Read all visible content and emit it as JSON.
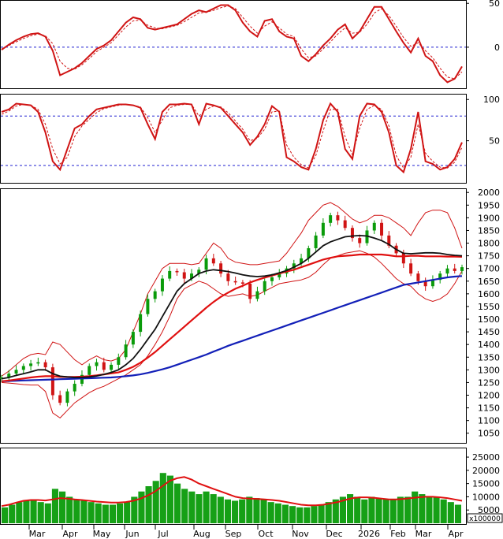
{
  "colors": {
    "price_up": "#0a9b0a",
    "price_down": "#d01414",
    "ma_short": "#111111",
    "ma_mid": "#e01010",
    "ma_long": "#1320b8",
    "band": "#d01414",
    "volume": "#16a016",
    "volume_ma": "#e01010",
    "ref_line": "#1f1fd0"
  },
  "x_axis": {
    "labels": [
      "Mar",
      "Apr",
      "May",
      "Jun",
      "Jul",
      "Aug",
      "Sep",
      "Oct",
      "Nov",
      "Dec",
      "2026",
      "Feb",
      "Mar",
      "Apr"
    ]
  },
  "chart_data": [
    {
      "type": "line",
      "panel": "oscillator-top",
      "y_ticks": [
        "50",
        "0"
      ],
      "ylim": [
        -45,
        52
      ],
      "reference_lines": [
        0
      ],
      "series": [
        {
          "values": [
            -3,
            3,
            8,
            12,
            15,
            16,
            12,
            -4,
            -32,
            -28,
            -24,
            -18,
            -10,
            -2,
            2,
            8,
            18,
            28,
            34,
            32,
            22,
            20,
            22,
            24,
            26,
            32,
            38,
            42,
            40,
            44,
            48,
            48,
            42,
            28,
            18,
            12,
            30,
            32,
            18,
            12,
            10,
            -10,
            -16,
            -8,
            2,
            10,
            20,
            26,
            10,
            18,
            32,
            46,
            46,
            32,
            18,
            5,
            -6,
            10,
            -10,
            -16,
            -32,
            -40,
            -36,
            -22
          ]
        },
        {
          "values": [
            -2,
            2,
            6,
            10,
            13,
            15,
            13,
            4,
            -16,
            -24,
            -25,
            -20,
            -13,
            -5,
            0,
            5,
            14,
            23,
            30,
            31,
            25,
            22,
            21,
            23,
            25,
            29,
            34,
            39,
            40,
            42,
            45,
            47,
            44,
            34,
            24,
            16,
            24,
            29,
            22,
            15,
            12,
            -2,
            -12,
            -10,
            -2,
            6,
            15,
            22,
            16,
            17,
            26,
            39,
            44,
            36,
            24,
            11,
            1,
            5,
            -4,
            -12,
            -24,
            -34,
            -36,
            -28
          ]
        }
      ]
    },
    {
      "type": "line",
      "panel": "oscillator-middle",
      "y_ticks": [
        "100",
        "50"
      ],
      "ylim": [
        0,
        105
      ],
      "reference_lines": [
        80,
        20
      ],
      "series": [
        {
          "values": [
            85,
            88,
            95,
            94,
            93,
            85,
            60,
            25,
            15,
            40,
            65,
            70,
            80,
            88,
            90,
            92,
            94,
            94,
            93,
            90,
            70,
            52,
            85,
            94,
            94,
            95,
            94,
            70,
            95,
            93,
            90,
            80,
            70,
            60,
            45,
            55,
            70,
            92,
            85,
            30,
            25,
            18,
            15,
            40,
            75,
            95,
            85,
            40,
            28,
            80,
            95,
            94,
            85,
            60,
            20,
            12,
            40,
            85,
            25,
            22,
            15,
            18,
            28,
            48
          ]
        },
        {
          "values": [
            82,
            86,
            92,
            94,
            93,
            88,
            70,
            40,
            22,
            30,
            55,
            68,
            76,
            84,
            89,
            91,
            93,
            94,
            93,
            91,
            78,
            60,
            75,
            90,
            93,
            94,
            94,
            80,
            88,
            92,
            91,
            84,
            74,
            64,
            50,
            53,
            64,
            85,
            86,
            45,
            30,
            21,
            17,
            32,
            62,
            88,
            88,
            55,
            33,
            65,
            88,
            93,
            88,
            68,
            32,
            17,
            30,
            70,
            35,
            25,
            18,
            17,
            24,
            42
          ]
        }
      ]
    },
    {
      "type": "line",
      "panel": "price",
      "y_ticks": [
        "2000",
        "1950",
        "1900",
        "1850",
        "1800",
        "1750",
        "1700",
        "1650",
        "1600",
        "1550",
        "1500",
        "1450",
        "1400",
        "1350",
        "1300",
        "1250",
        "1200",
        "1150",
        "1100",
        "1050"
      ],
      "ylim": [
        1015,
        2010
      ],
      "series": [
        {
          "values": [
            1270,
            1285,
            1300,
            1315,
            1325,
            1330,
            1310,
            1200,
            1170,
            1215,
            1245,
            1280,
            1315,
            1330,
            1300,
            1320,
            1350,
            1400,
            1450,
            1520,
            1580,
            1610,
            1660,
            1690,
            1685,
            1660,
            1680,
            1695,
            1740,
            1720,
            1680,
            1650,
            1645,
            1640,
            1580,
            1610,
            1650,
            1665,
            1680,
            1700,
            1720,
            1740,
            1780,
            1830,
            1880,
            1910,
            1890,
            1860,
            1820,
            1800,
            1850,
            1880,
            1830,
            1790,
            1760,
            1720,
            1680,
            1650,
            1630,
            1655,
            1680,
            1700,
            1690,
            1705
          ]
        },
        {
          "values": [
            1265,
            1270,
            1278,
            1285,
            1292,
            1300,
            1300,
            1285,
            1275,
            1272,
            1270,
            1270,
            1272,
            1276,
            1282,
            1290,
            1300,
            1320,
            1345,
            1380,
            1420,
            1460,
            1510,
            1560,
            1610,
            1640,
            1660,
            1680,
            1690,
            1695,
            1692,
            1688,
            1682,
            1675,
            1670,
            1668,
            1670,
            1675,
            1683,
            1692,
            1705,
            1720,
            1740,
            1765,
            1790,
            1805,
            1815,
            1825,
            1828,
            1830,
            1828,
            1820,
            1810,
            1795,
            1775,
            1760,
            1758,
            1760,
            1762,
            1762,
            1760,
            1755,
            1752,
            1750
          ]
        },
        {
          "values": [
            1255,
            1258,
            1262,
            1266,
            1270,
            1273,
            1275,
            1275,
            1272,
            1272,
            1272,
            1273,
            1275,
            1278,
            1282,
            1286,
            1290,
            1300,
            1312,
            1328,
            1348,
            1370,
            1395,
            1420,
            1445,
            1470,
            1495,
            1520,
            1545,
            1568,
            1588,
            1605,
            1620,
            1632,
            1645,
            1655,
            1664,
            1672,
            1680,
            1688,
            1695,
            1705,
            1715,
            1725,
            1735,
            1742,
            1748,
            1750,
            1752,
            1755,
            1755,
            1755,
            1755,
            1752,
            1748,
            1748,
            1750,
            1750,
            1748,
            1748,
            1748,
            1747,
            1747,
            1746
          ]
        },
        {
          "values": [
            1255,
            1256,
            1257,
            1258,
            1259,
            1260,
            1261,
            1262,
            1263,
            1264,
            1265,
            1266,
            1267,
            1268,
            1269,
            1270,
            1272,
            1275,
            1278,
            1282,
            1288,
            1295,
            1302,
            1310,
            1320,
            1330,
            1340,
            1350,
            1360,
            1372,
            1383,
            1395,
            1405,
            1415,
            1425,
            1435,
            1445,
            1455,
            1465,
            1475,
            1485,
            1495,
            1505,
            1515,
            1525,
            1535,
            1545,
            1555,
            1565,
            1575,
            1585,
            1595,
            1605,
            1615,
            1625,
            1635,
            1640,
            1645,
            1650,
            1655,
            1660,
            1665,
            1668,
            1670
          ]
        },
        {
          "values": [
            1275,
            1295,
            1320,
            1345,
            1360,
            1365,
            1360,
            1410,
            1400,
            1370,
            1340,
            1320,
            1340,
            1355,
            1340,
            1335,
            1345,
            1380,
            1450,
            1520,
            1600,
            1650,
            1700,
            1720,
            1720,
            1720,
            1715,
            1720,
            1760,
            1800,
            1780,
            1740,
            1725,
            1720,
            1715,
            1715,
            1720,
            1725,
            1730,
            1760,
            1800,
            1840,
            1890,
            1920,
            1950,
            1960,
            1945,
            1920,
            1895,
            1880,
            1890,
            1910,
            1910,
            1900,
            1880,
            1860,
            1830,
            1880,
            1920,
            1930,
            1930,
            1920,
            1860,
            1780
          ]
        },
        {
          "values": [
            1250,
            1248,
            1245,
            1242,
            1240,
            1240,
            1215,
            1130,
            1110,
            1140,
            1170,
            1190,
            1210,
            1225,
            1235,
            1250,
            1265,
            1280,
            1300,
            1320,
            1355,
            1400,
            1450,
            1510,
            1580,
            1620,
            1635,
            1650,
            1640,
            1620,
            1600,
            1590,
            1595,
            1600,
            1590,
            1595,
            1610,
            1625,
            1640,
            1645,
            1650,
            1655,
            1665,
            1685,
            1715,
            1740,
            1750,
            1760,
            1765,
            1770,
            1760,
            1745,
            1720,
            1690,
            1660,
            1640,
            1630,
            1600,
            1580,
            1570,
            1580,
            1600,
            1640,
            1690
          ]
        }
      ]
    },
    {
      "type": "bar",
      "panel": "volume",
      "y_ticks": [
        "25000",
        "20000",
        "15000",
        "10000",
        "5000"
      ],
      "units_label": "x100000",
      "ylim": [
        0,
        28000
      ],
      "values": [
        6000,
        7000,
        8000,
        8500,
        9000,
        8000,
        7500,
        13000,
        12000,
        10000,
        9000,
        8500,
        8000,
        7500,
        7000,
        7000,
        7500,
        8000,
        10000,
        12000,
        14000,
        16000,
        19000,
        18000,
        15000,
        13000,
        12000,
        11000,
        12000,
        11000,
        10000,
        9000,
        8500,
        9000,
        10000,
        9500,
        9000,
        8000,
        7500,
        7000,
        6500,
        6000,
        6000,
        6500,
        7000,
        8000,
        9000,
        10000,
        11000,
        10000,
        9000,
        10000,
        9500,
        9000,
        9000,
        10000,
        10000,
        12000,
        11000,
        10000,
        10000,
        9000,
        8000,
        7000
      ],
      "series": [
        {
          "values": [
            6500,
            7000,
            7800,
            8500,
            8800,
            8800,
            8600,
            9000,
            9500,
            9300,
            9000,
            8800,
            8500,
            8200,
            8000,
            7800,
            7800,
            8000,
            8500,
            9300,
            10500,
            12000,
            14000,
            16000,
            17000,
            17500,
            16500,
            15000,
            14000,
            13000,
            12000,
            11000,
            10000,
            9500,
            9300,
            9200,
            9000,
            8800,
            8500,
            8000,
            7500,
            7000,
            6800,
            6800,
            7000,
            7500,
            8000,
            8800,
            9500,
            9800,
            9800,
            9600,
            9300,
            9000,
            9000,
            9200,
            9500,
            9800,
            10000,
            10000,
            9800,
            9500,
            9000,
            8500
          ]
        }
      ]
    }
  ]
}
